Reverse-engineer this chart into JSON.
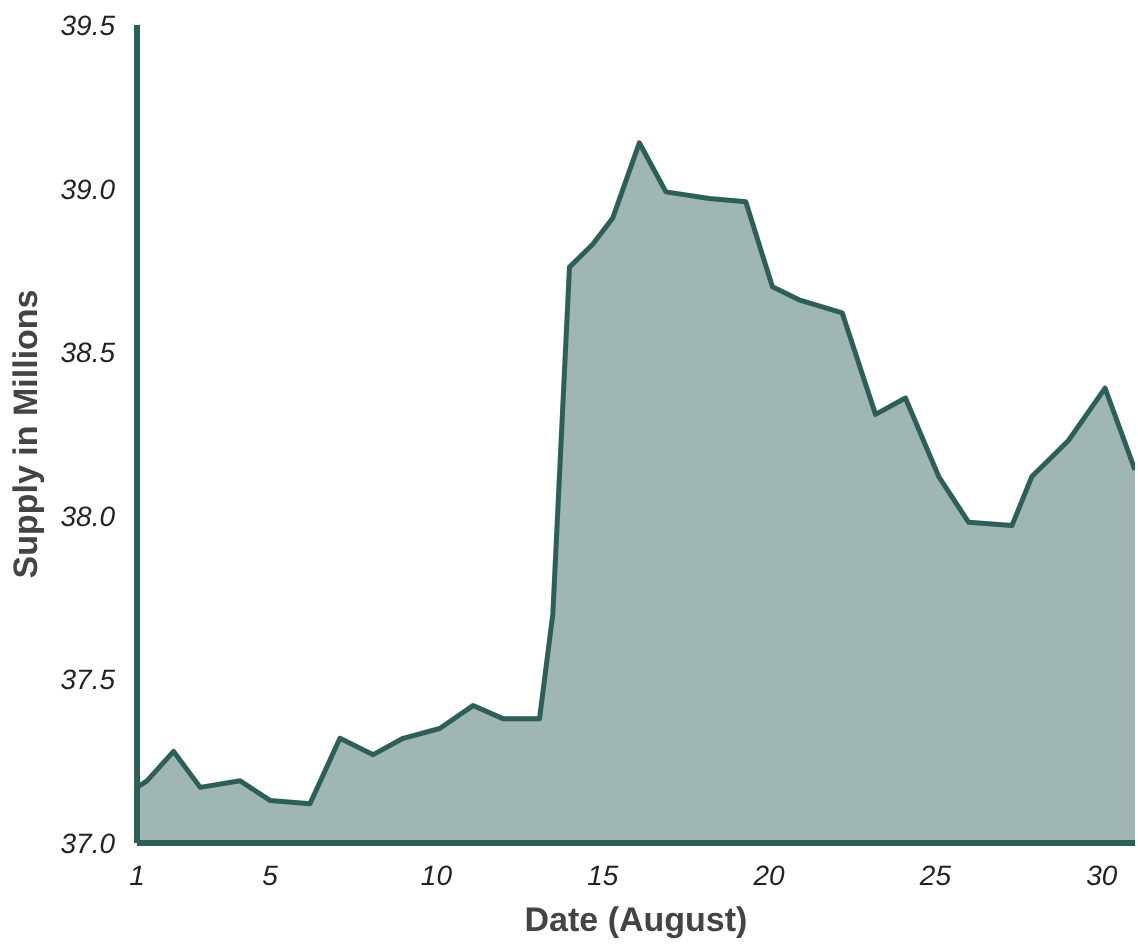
{
  "chart_data": {
    "type": "area",
    "xlabel": "Date (August)",
    "ylabel": "Supply in Millions",
    "x": [
      1,
      1.3,
      2.1,
      2.9,
      4.1,
      5,
      6.2,
      7.1,
      8.1,
      9,
      10.1,
      11.1,
      12,
      13.1,
      13.5,
      14,
      14.7,
      15.3,
      16.1,
      16.9,
      18.2,
      19.3,
      20.1,
      20.9,
      22.2,
      23.2,
      24.1,
      25.1,
      26,
      27.3,
      27.9,
      29,
      30.1,
      31
    ],
    "series": [
      {
        "color": "#2d5e57",
        "values": [
          37.17,
          37.19,
          37.28,
          37.17,
          37.19,
          37.13,
          37.12,
          37.32,
          37.27,
          37.32,
          37.35,
          37.42,
          37.38,
          37.38,
          37.7,
          38.76,
          38.83,
          38.91,
          39.14,
          38.99,
          38.97,
          38.96,
          38.7,
          38.66,
          38.62,
          38.31,
          38.36,
          38.12,
          37.98,
          37.97,
          38.12,
          38.23,
          38.39,
          38.14
        ]
      }
    ],
    "xlim": [
      1,
      31
    ],
    "ylim": [
      37.0,
      39.5
    ],
    "xticks": [
      1,
      5,
      10,
      15,
      20,
      25,
      30
    ],
    "yticks": [
      {
        "value": 37.0,
        "label": "37.0"
      },
      {
        "value": 37.5,
        "label": "37.5"
      },
      {
        "value": 38.0,
        "label": "38.0"
      },
      {
        "value": 38.5,
        "label": "38.5"
      },
      {
        "value": 39.0,
        "label": "39.0"
      },
      {
        "value": 39.5,
        "label": "39.5"
      }
    ],
    "grid": false
  }
}
